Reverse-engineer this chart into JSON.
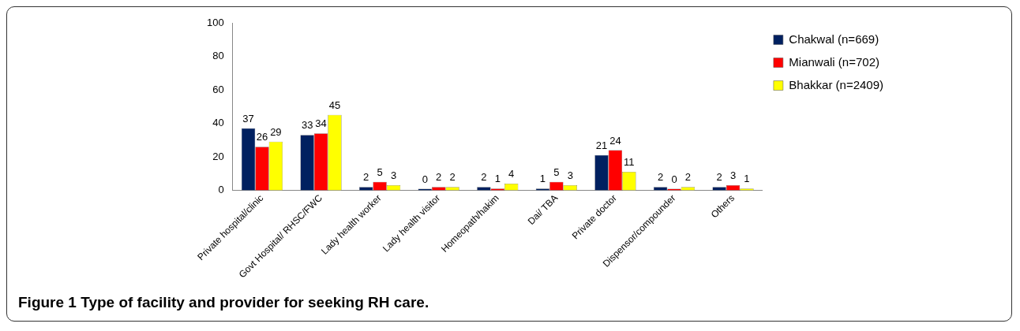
{
  "chart_data": {
    "type": "bar",
    "title": "Figure 1 Type of facility and provider for seeking RH care.",
    "categories": [
      "Private hospital/clinic",
      "Govt Hospital/ RHSC/FWC",
      "Lady health worker",
      "Lady health visitor",
      "Homeopath/hakim",
      "Dai/ TBA",
      "Private doctor",
      "Dispensor/compounder",
      "Others"
    ],
    "series": [
      {
        "name": "Chakwal (n=669)",
        "color": "#002060",
        "values": [
          37,
          33,
          2,
          0,
          2,
          1,
          21,
          2,
          2
        ]
      },
      {
        "name": "Mianwali (n=702)",
        "color": "#ff0000",
        "values": [
          26,
          34,
          5,
          2,
          1,
          5,
          24,
          0,
          3
        ]
      },
      {
        "name": "Bhakkar (n=2409)",
        "color": "#ffff00",
        "values": [
          29,
          45,
          3,
          2,
          4,
          3,
          11,
          2,
          1
        ]
      }
    ],
    "ylim": [
      0,
      100
    ],
    "yticks": [
      0,
      20,
      40,
      60,
      80,
      100
    ],
    "grid": false,
    "legend": "top right",
    "data_labels": true
  }
}
